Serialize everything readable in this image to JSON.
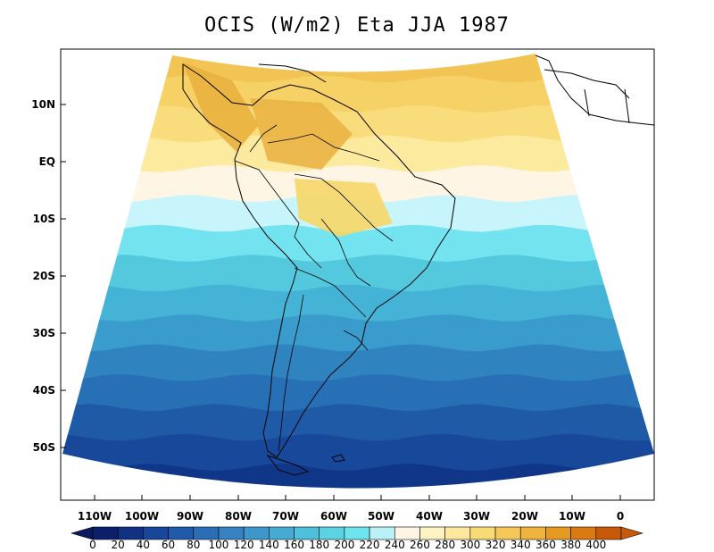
{
  "title": "OCIS (W/m2) Eta JJA 1987",
  "lat_labels": [
    "10N",
    "EQ",
    "10S",
    "20S",
    "30S",
    "40S",
    "50S"
  ],
  "lon_labels": [
    "110W",
    "100W",
    "90W",
    "80W",
    "70W",
    "60W",
    "50W",
    "40W",
    "30W",
    "20W",
    "10W",
    "0"
  ],
  "colorbar": {
    "labels": [
      "0",
      "20",
      "40",
      "60",
      "80",
      "100",
      "120",
      "140",
      "160",
      "180",
      "200",
      "220",
      "240",
      "260",
      "280",
      "300",
      "320",
      "340",
      "360",
      "380",
      "400"
    ],
    "colors": [
      "#0c1f6b",
      "#113283",
      "#17479b",
      "#1f5aab",
      "#2b6eb8",
      "#3682c2",
      "#3e97cb",
      "#45abd2",
      "#4ec0da",
      "#5bd3e3",
      "#6ee5ee",
      "#b9f1f6",
      "#fff5e4",
      "#fdf2c2",
      "#fde89d",
      "#f9db76",
      "#f4c95a",
      "#eeb43e",
      "#e69a22",
      "#d97a12",
      "#c75a0a"
    ],
    "under_color": "#0a1a5c",
    "over_color": "#c75a0a"
  },
  "bands": [
    "#f2c453",
    "#f6d266",
    "#f9dd7d",
    "#fcea9e",
    "#fff5e4",
    "#c7f5fb",
    "#72e3ef",
    "#54c9de",
    "#45b3d5",
    "#3a9ccc",
    "#2f84c0",
    "#2870b5",
    "#1f5aa6",
    "#17489a",
    "#103688",
    "#0c2575"
  ]
}
